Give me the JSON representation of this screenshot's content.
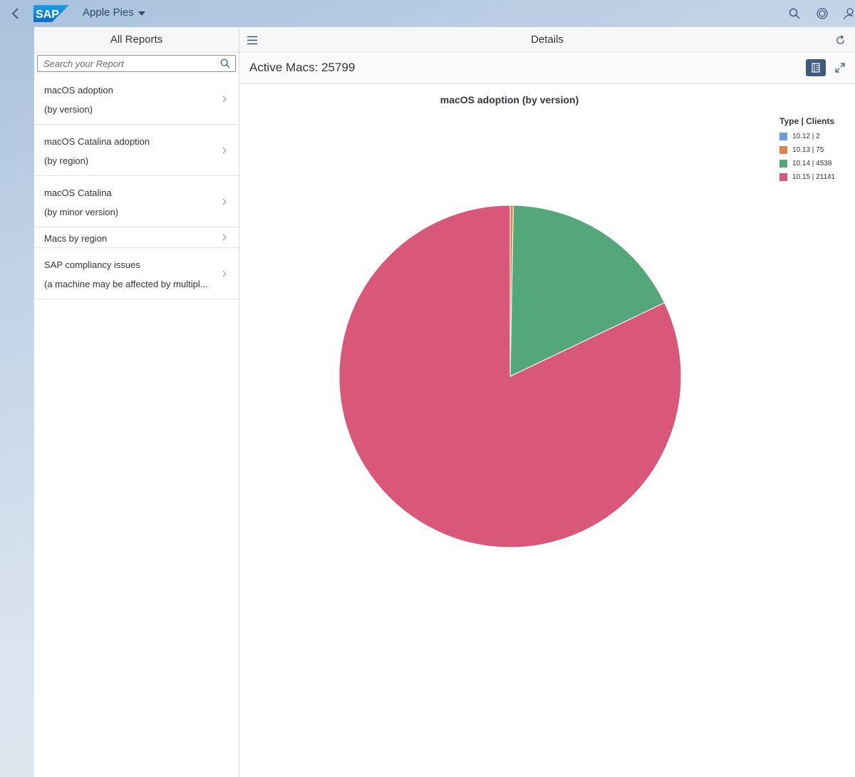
{
  "shell": {
    "app_title": "Apple Pies",
    "logo_text": "SAP"
  },
  "master": {
    "header": "All Reports",
    "search_placeholder": "Search your Report",
    "items": [
      {
        "title": "macOS adoption",
        "desc": "(by version)"
      },
      {
        "title": "macOS Catalina adoption",
        "desc": "(by region)"
      },
      {
        "title": "macOS Catalina",
        "desc": "(by minor version)"
      },
      {
        "title": "Macs by region",
        "desc": ""
      },
      {
        "title": "SAP compliancy issues",
        "desc": "(a machine may be affected by multipl..."
      }
    ]
  },
  "detail": {
    "header": "Details",
    "active_title": "Active Macs: 25799"
  },
  "chart_data": {
    "type": "pie",
    "title": "macOS adoption (by version)",
    "legend_title": "Type | Clients",
    "legend_position": "top-right",
    "slices": [
      {
        "label": "10.12 | 2",
        "category": "10.12",
        "value": 2,
        "color": "#6d9ce0"
      },
      {
        "label": "10.13 | 75",
        "category": "10.13",
        "value": 75,
        "color": "#e2834a"
      },
      {
        "label": "10.14 | 4538",
        "category": "10.14",
        "value": 4538,
        "color": "#53a77b"
      },
      {
        "label": "10.15 | 21141",
        "category": "10.15",
        "value": 21141,
        "color": "#d9587a"
      }
    ]
  },
  "colors": {
    "accent": "#3f5a7f",
    "shell_text": "#2c4a6e"
  }
}
